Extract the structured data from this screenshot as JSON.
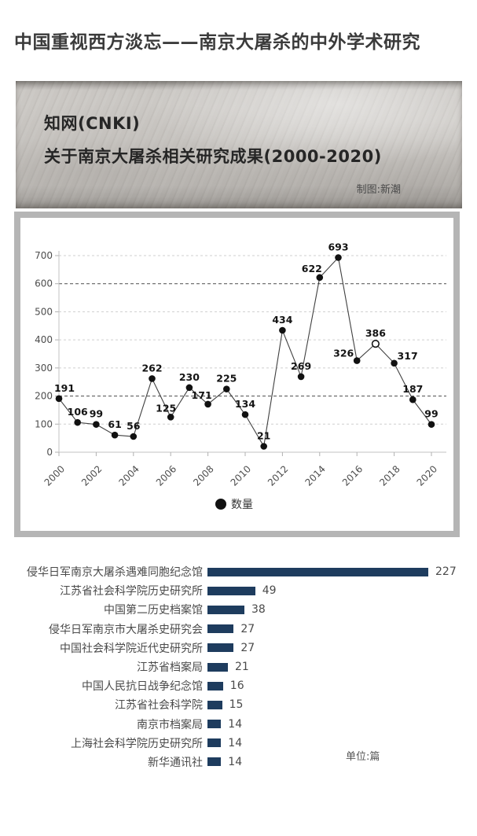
{
  "page_title": "中国重视西方淡忘——南京大屠杀的中外学术研究",
  "header": {
    "source": "知网(CNKI)",
    "subtitle": "关于南京大屠杀相关研究成果(2000-2020)",
    "credit": "制图:新潮"
  },
  "colors": {
    "bar": "#1e3c5e",
    "grid_light": "#cfcfcf",
    "grid_dark": "#4d4d4d",
    "axis": "#c3c3c3",
    "line": "#3f3f3f",
    "dot": "#111111"
  },
  "chart_data": [
    {
      "type": "line",
      "title": "知网(CNKI)关于南京大屠杀相关研究成果(2000-2020)",
      "x": [
        2000,
        2001,
        2002,
        2003,
        2004,
        2005,
        2006,
        2007,
        2008,
        2009,
        2010,
        2011,
        2012,
        2013,
        2014,
        2015,
        2016,
        2017,
        2018,
        2019,
        2020
      ],
      "series": [
        {
          "name": "数量",
          "values": [
            191,
            106,
            99,
            61,
            56,
            262,
            125,
            230,
            171,
            225,
            134,
            21,
            434,
            269,
            622,
            693,
            326,
            386,
            317,
            187,
            99
          ]
        }
      ],
      "ylim": [
        0,
        700
      ],
      "yticks": [
        0,
        100,
        200,
        300,
        400,
        500,
        600,
        700
      ],
      "xtick_labels": [
        "2000",
        "2002",
        "2004",
        "2006",
        "2008",
        "2010",
        "2012",
        "2014",
        "2016",
        "2018",
        "2020"
      ],
      "grid": "horizontal-dashed",
      "dark_gridlines": [
        200,
        600
      ],
      "open_point_x": 2017,
      "legend": {
        "label": "数量",
        "position": "bottom"
      }
    },
    {
      "type": "bar",
      "orientation": "horizontal",
      "categories": [
        "侵华日军南京大屠杀遇难同胞纪念馆",
        "江苏省社会科学院历史研究所",
        "中国第二历史档案馆",
        "侵华日军南京市大屠杀史研究会",
        "中国社会科学院近代史研究所",
        "江苏省档案局",
        "中国人民抗日战争纪念馆",
        "江苏省社会科学院",
        "南京市档案局",
        "上海社会科学院历史研究所",
        "新华通讯社"
      ],
      "values": [
        227,
        49,
        38,
        27,
        27,
        21,
        16,
        15,
        14,
        14,
        14
      ],
      "unit_label": "单位:篇"
    }
  ]
}
